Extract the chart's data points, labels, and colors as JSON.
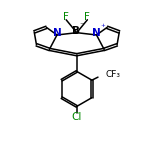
{
  "bg_color": "#ffffff",
  "line_color": "#000000",
  "N_color": "#0000cc",
  "Cl_color": "#008800",
  "F_color": "#008800",
  "line_width": 1.1,
  "figsize": [
    1.52,
    1.52
  ],
  "dpi": 100,
  "xlim": [
    0,
    10
  ],
  "ylim": [
    0,
    10
  ],
  "B_label": "B",
  "B_minus": "⁻",
  "N_plus": "⁺",
  "F_labels": [
    "F",
    "F"
  ],
  "Cl_label": "Cl",
  "CF3_label": "CF₃"
}
